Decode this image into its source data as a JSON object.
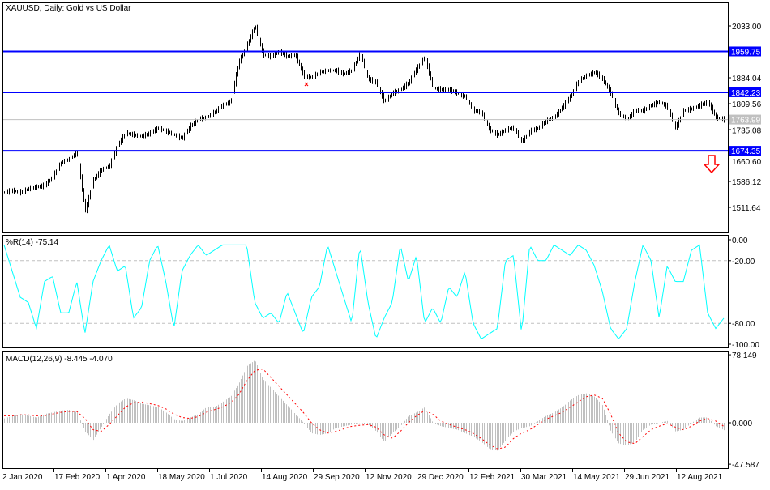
{
  "title": "XAUUSD, Daily:  Gold vs US Dollar",
  "colors": {
    "level_line": "#0000ff",
    "bars": "#000000",
    "wpr": "#00ffff",
    "macd_hist": "#c0c0c0",
    "macd_signal": "#ff0000",
    "current_price": "#c0c0c0",
    "arrow": "#ff0000"
  },
  "chart_data": [
    {
      "type": "bar",
      "style": "ohlc-bars",
      "symbol": "XAUUSD",
      "timeframe": "Daily",
      "ylim": [
        1460,
        2075
      ],
      "y_ticks": [
        "2033.00",
        "1884.04",
        "1809.56",
        "1735.08",
        "1660.60",
        "1586.12",
        "1511.64"
      ],
      "horizontal_levels": [
        {
          "value": 1959.75,
          "label": "1959.75"
        },
        {
          "value": 1842.23,
          "label": "1842.23"
        },
        {
          "value": 1674.35,
          "label": "1674.35"
        }
      ],
      "current_price": {
        "value": 1763.99,
        "label": "1763.99"
      },
      "annotation": "down-arrow-icon",
      "close_sampled": [
        1555,
        1560,
        1555,
        1565,
        1570,
        1575,
        1600,
        1640,
        1650,
        1670,
        1500,
        1590,
        1620,
        1630,
        1690,
        1725,
        1720,
        1715,
        1725,
        1740,
        1730,
        1720,
        1710,
        1745,
        1765,
        1770,
        1785,
        1805,
        1815,
        1930,
        1975,
        2035,
        1950,
        1945,
        1960,
        1945,
        1950,
        1890,
        1885,
        1900,
        1905,
        1905,
        1895,
        1905,
        1955,
        1880,
        1870,
        1815,
        1840,
        1850,
        1870,
        1910,
        1945,
        1855,
        1850,
        1850,
        1840,
        1830,
        1790,
        1785,
        1735,
        1720,
        1735,
        1740,
        1700,
        1730,
        1740,
        1760,
        1770,
        1800,
        1830,
        1875,
        1890,
        1900,
        1880,
        1840,
        1780,
        1765,
        1790,
        1790,
        1805,
        1815,
        1800,
        1740,
        1790,
        1795,
        1805,
        1815,
        1770,
        1764
      ]
    },
    {
      "type": "line",
      "label": "%R(14) -75.14",
      "ylim": [
        -100,
        0
      ],
      "y_ticks": [
        "0.00",
        "-20.00",
        "-80.00",
        "-100.00"
      ],
      "levels": [
        -20,
        -80
      ],
      "values": [
        -5,
        -30,
        -55,
        -60,
        -85,
        -40,
        -35,
        -70,
        -70,
        -40,
        -90,
        -40,
        -20,
        -5,
        -30,
        -25,
        -75,
        -65,
        -20,
        -5,
        -40,
        -85,
        -30,
        -15,
        -5,
        -15,
        -10,
        -5,
        -5,
        -5,
        -5,
        -60,
        -75,
        -70,
        -80,
        -50,
        -70,
        -90,
        -55,
        -45,
        -5,
        -30,
        -55,
        -80,
        -5,
        -60,
        -95,
        -75,
        -60,
        -5,
        -40,
        -15,
        -80,
        -65,
        -80,
        -45,
        -55,
        -30,
        -80,
        -95,
        -90,
        -85,
        -20,
        -15,
        -90,
        -5,
        -20,
        -20,
        -5,
        -10,
        -15,
        -5,
        -10,
        -25,
        -50,
        -85,
        -95,
        -85,
        -40,
        -5,
        -20,
        -75,
        -25,
        -40,
        -40,
        -10,
        -5,
        -70,
        -85,
        -75.14
      ]
    },
    {
      "type": "bar",
      "label": "MACD(12,26,9) -8.445 -4.070",
      "ylim": [
        -47.587,
        78.149
      ],
      "y_ticks": [
        "78.149",
        "0.000",
        "-47.587"
      ],
      "macd": [
        5,
        8,
        10,
        8,
        6,
        10,
        12,
        14,
        15,
        12,
        -10,
        -20,
        -5,
        10,
        22,
        28,
        26,
        22,
        20,
        18,
        12,
        4,
        2,
        6,
        10,
        18,
        18,
        24,
        30,
        45,
        65,
        72,
        50,
        40,
        30,
        20,
        10,
        0,
        -12,
        -14,
        -12,
        -6,
        -4,
        -2,
        0,
        -2,
        -10,
        -22,
        -12,
        -4,
        8,
        12,
        18,
        0,
        -4,
        -6,
        -8,
        -12,
        -16,
        -22,
        -30,
        -32,
        -20,
        -10,
        -6,
        -4,
        2,
        8,
        12,
        18,
        26,
        32,
        34,
        30,
        20,
        -10,
        -24,
        -26,
        -22,
        -8,
        -2,
        0,
        2,
        -10,
        -8,
        0,
        6,
        6,
        -4,
        -8.445
      ],
      "signal": [
        8,
        8,
        9,
        9,
        8,
        8,
        10,
        12,
        13,
        13,
        5,
        -8,
        -10,
        -2,
        8,
        18,
        23,
        24,
        22,
        20,
        16,
        10,
        6,
        5,
        7,
        12,
        15,
        18,
        23,
        32,
        48,
        60,
        62,
        52,
        42,
        32,
        22,
        12,
        0,
        -8,
        -12,
        -10,
        -7,
        -4,
        -3,
        -2,
        -5,
        -14,
        -18,
        -10,
        0,
        8,
        14,
        10,
        2,
        -2,
        -5,
        -8,
        -12,
        -18,
        -25,
        -30,
        -28,
        -18,
        -12,
        -8,
        -2,
        4,
        8,
        12,
        18,
        24,
        30,
        32,
        28,
        10,
        -12,
        -22,
        -24,
        -16,
        -8,
        -4,
        -1,
        -5,
        -8,
        -4,
        2,
        5,
        2,
        -4.07
      ]
    }
  ],
  "x_ticks": [
    "2 Jan 2020",
    "17 Feb 2020",
    "1 Apr 2020",
    "18 May 2020",
    "1 Jul 2020",
    "14 Aug 2020",
    "29 Sep 2020",
    "12 Nov 2020",
    "29 Dec 2020",
    "12 Feb 2021",
    "30 Mar 2021",
    "14 May 2021",
    "29 Jun 2021",
    "12 Aug 2021"
  ]
}
